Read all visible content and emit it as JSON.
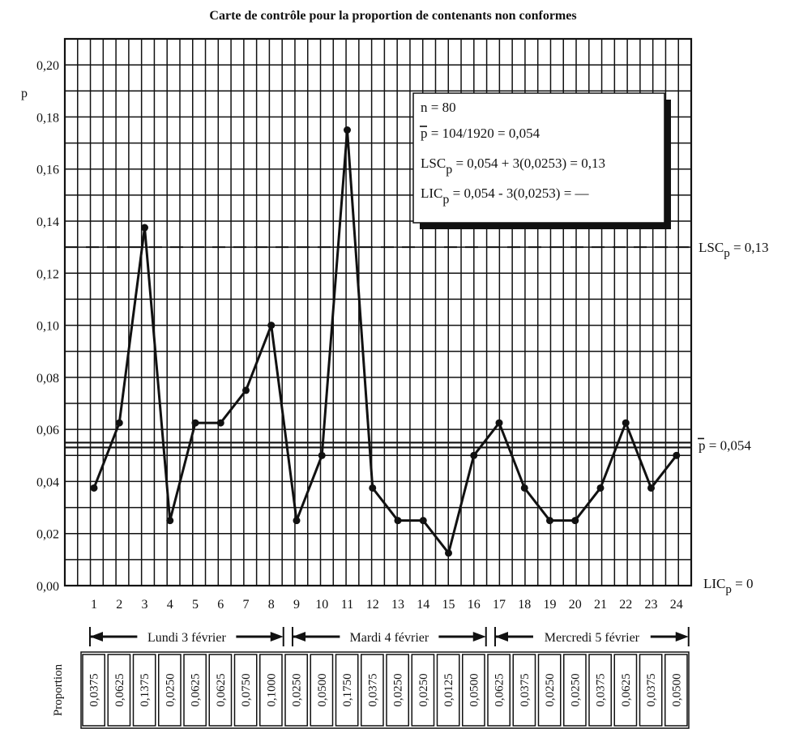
{
  "chart_data": {
    "type": "line",
    "title": "Carte de contrôle pour la proportion de contenants non conformes",
    "ylabel": "p",
    "ylim": [
      0,
      0.21
    ],
    "y_ticks": [
      "0,00",
      "0,02",
      "0,04",
      "0,06",
      "0,08",
      "0,10",
      "0,12",
      "0,14",
      "0,16",
      "0,18",
      "0,20"
    ],
    "x_ticks": [
      "1",
      "2",
      "3",
      "4",
      "5",
      "6",
      "7",
      "8",
      "9",
      "10",
      "11",
      "12",
      "13",
      "14",
      "15",
      "16",
      "17",
      "18",
      "19",
      "20",
      "21",
      "22",
      "23",
      "24"
    ],
    "x": [
      1,
      2,
      3,
      4,
      5,
      6,
      7,
      8,
      9,
      10,
      11,
      12,
      13,
      14,
      15,
      16,
      17,
      18,
      19,
      20,
      21,
      22,
      23,
      24
    ],
    "values": [
      0.0375,
      0.0625,
      0.1375,
      0.025,
      0.0625,
      0.0625,
      0.075,
      0.1,
      0.025,
      0.05,
      0.175,
      0.0375,
      0.025,
      0.025,
      0.0125,
      0.05,
      0.0625,
      0.0375,
      0.025,
      0.025,
      0.0375,
      0.0625,
      0.0375,
      0.05
    ],
    "grid": true,
    "reference_lines": [
      {
        "label_main": "LSC",
        "label_sub": "p",
        "label_rest": " = 0,13",
        "value": 0.13,
        "style": "dashed"
      },
      {
        "label_main": "p",
        "label_sub": "",
        "label_rest": " = 0,054",
        "value": 0.054,
        "style": "double-solid"
      },
      {
        "label_main": "LIC",
        "label_sub": "p",
        "label_rest": " = 0",
        "value": 0.0,
        "style": "axis"
      }
    ],
    "legend": {
      "placement": "top-right",
      "lines": [
        {
          "main": "n = 80",
          "sub": "",
          "rest": ""
        },
        {
          "main": "p = 104/1920 = 0,054",
          "sub": "",
          "rest": ""
        },
        {
          "main": "LSC",
          "sub": "p",
          "rest": " = 0,054 + 3(0,0253) = 0,13"
        },
        {
          "main": "LIC",
          "sub": "p",
          "rest": " = 0,054 - 3(0,0253) = —"
        }
      ]
    },
    "day_groups": [
      {
        "label": "Lundi 3 février",
        "from": 1,
        "to": 8
      },
      {
        "label": "Mardi 4 février",
        "from": 9,
        "to": 16
      },
      {
        "label": "Mercredi 5 février",
        "from": 17,
        "to": 24
      }
    ],
    "proportion_row_label": "Proportion",
    "proportion_values": [
      "0,0375",
      "0,0625",
      "0,1375",
      "0,0250",
      "0,0625",
      "0,0625",
      "0,0750",
      "0,1000",
      "0,0250",
      "0,0500",
      "0,1750",
      "0,0375",
      "0,0250",
      "0,0250",
      "0,0125",
      "0,0500",
      "0,0625",
      "0,0375",
      "0,0250",
      "0,0250",
      "0,0375",
      "0,0625",
      "0,0375",
      "0,0500"
    ]
  }
}
